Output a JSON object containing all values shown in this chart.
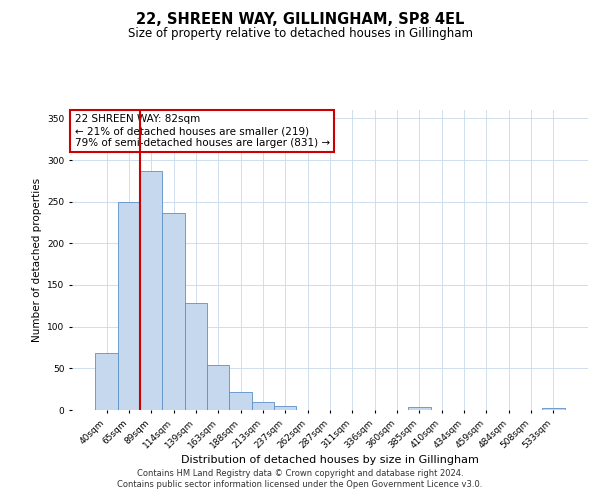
{
  "title": "22, SHREEN WAY, GILLINGHAM, SP8 4EL",
  "subtitle": "Size of property relative to detached houses in Gillingham",
  "xlabel": "Distribution of detached houses by size in Gillingham",
  "ylabel": "Number of detached properties",
  "bar_labels": [
    "40sqm",
    "65sqm",
    "89sqm",
    "114sqm",
    "139sqm",
    "163sqm",
    "188sqm",
    "213sqm",
    "237sqm",
    "262sqm",
    "287sqm",
    "311sqm",
    "336sqm",
    "360sqm",
    "385sqm",
    "410sqm",
    "434sqm",
    "459sqm",
    "484sqm",
    "508sqm",
    "533sqm"
  ],
  "bar_values": [
    68,
    250,
    287,
    236,
    128,
    54,
    22,
    10,
    5,
    0,
    0,
    0,
    0,
    0,
    4,
    0,
    0,
    0,
    0,
    0,
    3
  ],
  "bar_color": "#c5d8ed",
  "bar_edge_color": "#5b8fc9",
  "vline_color": "#cc0000",
  "annotation_text": "22 SHREEN WAY: 82sqm\n← 21% of detached houses are smaller (219)\n79% of semi-detached houses are larger (831) →",
  "annotation_box_color": "#ffffff",
  "annotation_box_edge": "#cc0000",
  "ylim": [
    0,
    360
  ],
  "yticks": [
    0,
    50,
    100,
    150,
    200,
    250,
    300,
    350
  ],
  "background_color": "#ffffff",
  "footer_line1": "Contains HM Land Registry data © Crown copyright and database right 2024.",
  "footer_line2": "Contains public sector information licensed under the Open Government Licence v3.0."
}
